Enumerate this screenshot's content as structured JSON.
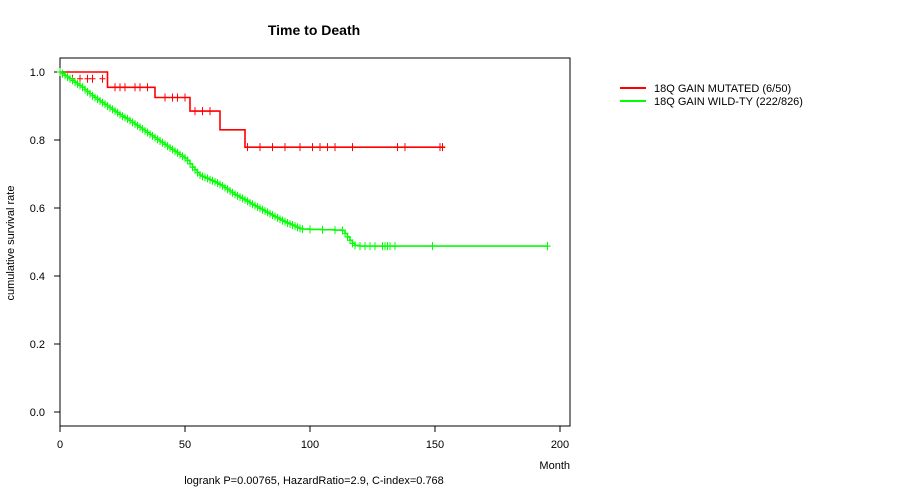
{
  "chart_data": {
    "type": "line",
    "subtype": "kaplan-meier",
    "title": "Time to Death",
    "xlabel": "Month",
    "ylabel": "cumulative survival rate",
    "xlim": [
      0,
      200
    ],
    "ylim": [
      0,
      1
    ],
    "xticks": [
      0,
      50,
      100,
      150,
      200
    ],
    "yticks": [
      "0.0",
      "0.2",
      "0.4",
      "0.6",
      "0.8",
      "1.0"
    ],
    "footnote": "logrank P=0.00765, HazardRatio=2.9, C-index=0.768",
    "legend_position": "right, outside plot",
    "series": [
      {
        "name": "18Q GAIN MUTATED (6/50)",
        "color": "#ff0000",
        "steps": [
          [
            0,
            1.0
          ],
          [
            19,
            0.955
          ],
          [
            38,
            0.925
          ],
          [
            52,
            0.885
          ],
          [
            64,
            0.83
          ],
          [
            74,
            0.779
          ],
          [
            154,
            0.779
          ]
        ],
        "censors": [
          [
            5,
            0.98
          ],
          [
            8,
            0.98
          ],
          [
            11,
            0.98
          ],
          [
            13,
            0.98
          ],
          [
            17,
            0.98
          ],
          [
            22,
            0.955
          ],
          [
            24,
            0.955
          ],
          [
            26,
            0.955
          ],
          [
            30,
            0.955
          ],
          [
            32,
            0.955
          ],
          [
            35,
            0.955
          ],
          [
            42,
            0.925
          ],
          [
            45,
            0.925
          ],
          [
            47,
            0.925
          ],
          [
            50,
            0.925
          ],
          [
            54,
            0.885
          ],
          [
            57,
            0.885
          ],
          [
            60,
            0.885
          ],
          [
            75,
            0.779
          ],
          [
            80,
            0.779
          ],
          [
            85,
            0.779
          ],
          [
            90,
            0.779
          ],
          [
            96,
            0.779
          ],
          [
            101,
            0.779
          ],
          [
            104,
            0.779
          ],
          [
            107,
            0.779
          ],
          [
            110,
            0.779
          ],
          [
            117,
            0.779
          ],
          [
            135,
            0.779
          ],
          [
            138,
            0.779
          ],
          [
            152,
            0.779
          ],
          [
            153,
            0.779
          ]
        ]
      },
      {
        "name": "18Q GAIN WILD-TY (222/826)",
        "color": "#00ff00",
        "points": [
          [
            0,
            1.0
          ],
          [
            1,
            0.995
          ],
          [
            2,
            0.99
          ],
          [
            3,
            0.985
          ],
          [
            4,
            0.98
          ],
          [
            5,
            0.975
          ],
          [
            6,
            0.97
          ],
          [
            7,
            0.965
          ],
          [
            8,
            0.96
          ],
          [
            9,
            0.955
          ],
          [
            10,
            0.948
          ],
          [
            11,
            0.942
          ],
          [
            12,
            0.936
          ],
          [
            13,
            0.93
          ],
          [
            14,
            0.925
          ],
          [
            15,
            0.92
          ],
          [
            16,
            0.915
          ],
          [
            17,
            0.91
          ],
          [
            18,
            0.905
          ],
          [
            19,
            0.9
          ],
          [
            20,
            0.895
          ],
          [
            21,
            0.89
          ],
          [
            22,
            0.885
          ],
          [
            23,
            0.88
          ],
          [
            24,
            0.875
          ],
          [
            25,
            0.87
          ],
          [
            26,
            0.866
          ],
          [
            27,
            0.862
          ],
          [
            28,
            0.857
          ],
          [
            29,
            0.852
          ],
          [
            30,
            0.847
          ],
          [
            31,
            0.842
          ],
          [
            32,
            0.837
          ],
          [
            33,
            0.832
          ],
          [
            34,
            0.827
          ],
          [
            35,
            0.822
          ],
          [
            36,
            0.817
          ],
          [
            37,
            0.812
          ],
          [
            38,
            0.807
          ],
          [
            39,
            0.802
          ],
          [
            40,
            0.797
          ],
          [
            41,
            0.792
          ],
          [
            42,
            0.787
          ],
          [
            43,
            0.782
          ],
          [
            44,
            0.777
          ],
          [
            45,
            0.772
          ],
          [
            46,
            0.767
          ],
          [
            47,
            0.762
          ],
          [
            48,
            0.757
          ],
          [
            49,
            0.752
          ],
          [
            50,
            0.747
          ],
          [
            51,
            0.74
          ],
          [
            52,
            0.73
          ],
          [
            53,
            0.72
          ],
          [
            54,
            0.712
          ],
          [
            55,
            0.704
          ],
          [
            56,
            0.697
          ],
          [
            57,
            0.693
          ],
          [
            58,
            0.69
          ],
          [
            59,
            0.687
          ],
          [
            60,
            0.683
          ],
          [
            61,
            0.68
          ],
          [
            62,
            0.677
          ],
          [
            63,
            0.673
          ],
          [
            64,
            0.669
          ],
          [
            65,
            0.665
          ],
          [
            66,
            0.66
          ],
          [
            67,
            0.655
          ],
          [
            68,
            0.65
          ],
          [
            69,
            0.645
          ],
          [
            70,
            0.64
          ],
          [
            71,
            0.636
          ],
          [
            72,
            0.632
          ],
          [
            73,
            0.628
          ],
          [
            74,
            0.624
          ],
          [
            75,
            0.62
          ],
          [
            76,
            0.615
          ],
          [
            77,
            0.611
          ],
          [
            78,
            0.607
          ],
          [
            79,
            0.603
          ],
          [
            80,
            0.599
          ],
          [
            81,
            0.595
          ],
          [
            82,
            0.591
          ],
          [
            83,
            0.587
          ],
          [
            84,
            0.583
          ],
          [
            85,
            0.579
          ],
          [
            86,
            0.575
          ],
          [
            87,
            0.571
          ],
          [
            88,
            0.567
          ],
          [
            89,
            0.563
          ],
          [
            90,
            0.56
          ],
          [
            91,
            0.556
          ],
          [
            92,
            0.553
          ],
          [
            93,
            0.55
          ],
          [
            94,
            0.547
          ],
          [
            95,
            0.543
          ],
          [
            96,
            0.54
          ],
          [
            97,
            0.538
          ],
          [
            100,
            0.537
          ],
          [
            105,
            0.536
          ],
          [
            110,
            0.535
          ],
          [
            113,
            0.534
          ],
          [
            114,
            0.525
          ],
          [
            115,
            0.515
          ],
          [
            116,
            0.505
          ],
          [
            117,
            0.496
          ],
          [
            118,
            0.49
          ],
          [
            120,
            0.488
          ],
          [
            195,
            0.488
          ]
        ]
      }
    ]
  }
}
